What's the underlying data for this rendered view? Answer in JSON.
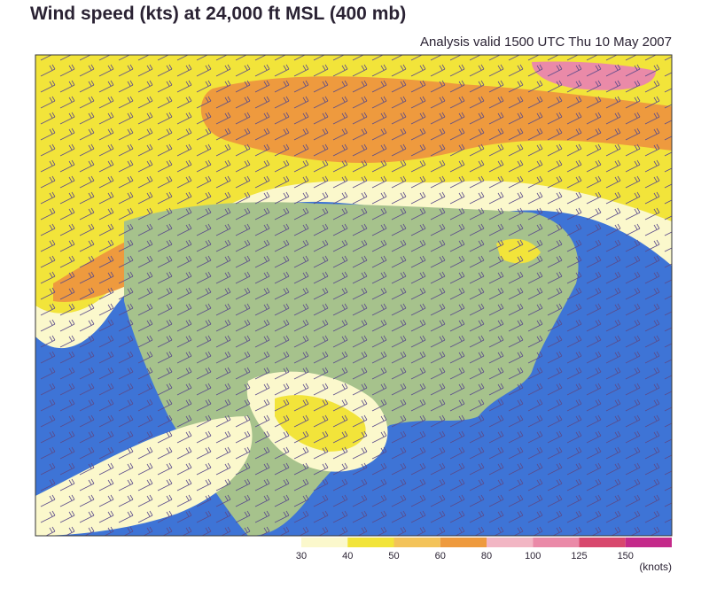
{
  "header": {
    "title": "Wind speed (kts) at 24,000 ft MSL (400 mb)",
    "subtitle": "Analysis valid 1500 UTC Thu 10 May 2007"
  },
  "legend": {
    "levels": [
      30,
      40,
      50,
      60,
      80,
      100,
      125,
      150
    ],
    "colors": [
      "#fbf8cc",
      "#f2e43a",
      "#f3c35a",
      "#ee9a3e",
      "#f2b6c4",
      "#ea8aa8",
      "#d8486e",
      "#c42a8a"
    ],
    "unit": "(knots)"
  }
}
